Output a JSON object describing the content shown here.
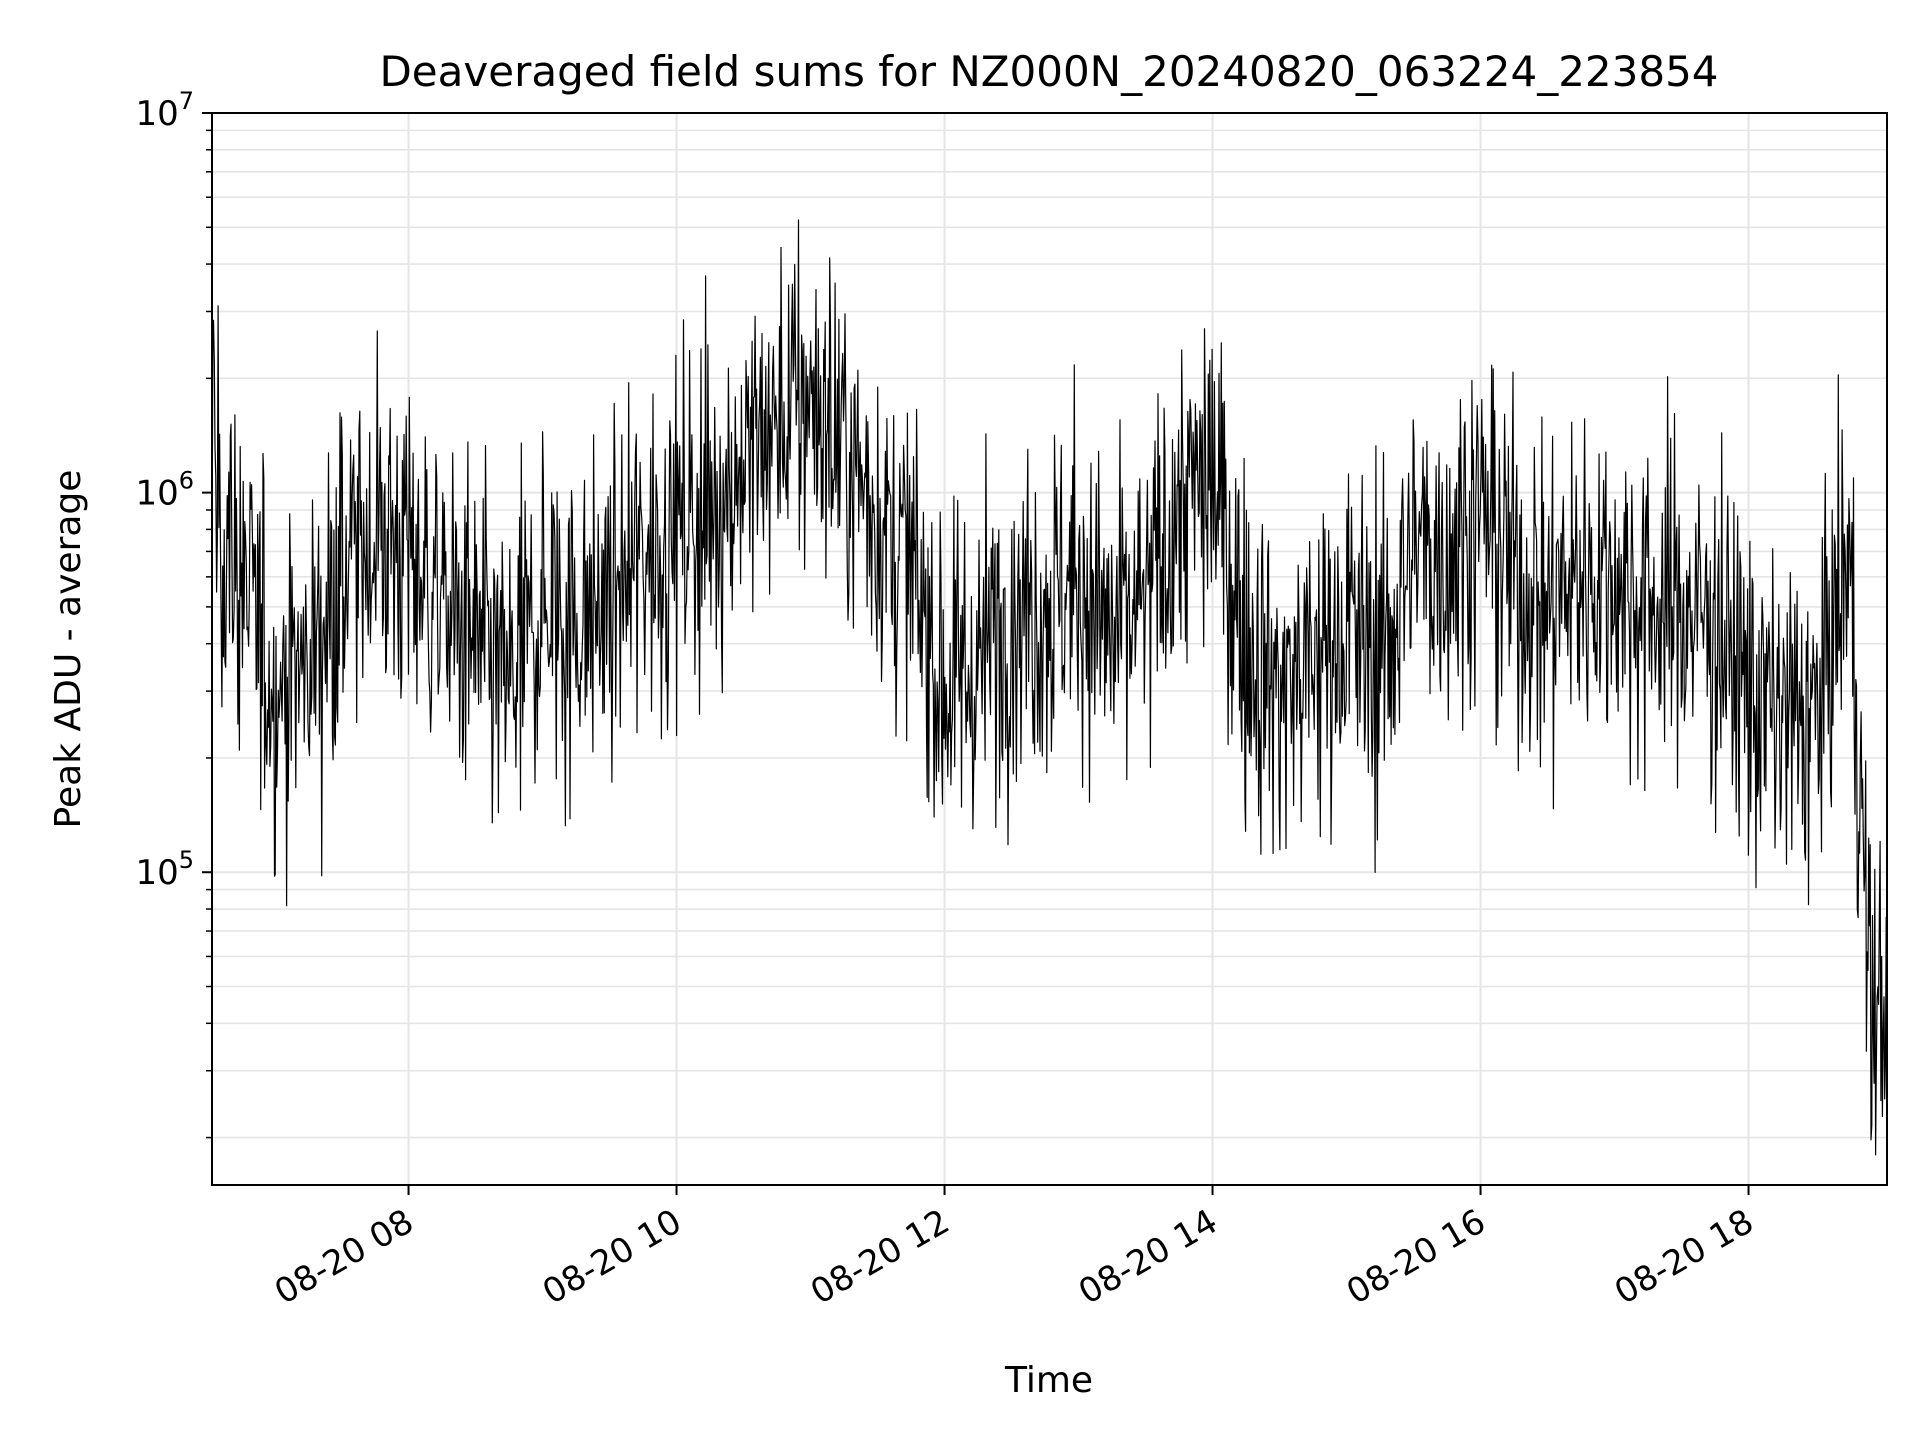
{
  "chart_data": {
    "type": "line",
    "title": "Deaveraged field sums for NZ000N_20240820_063224_223854",
    "xlabel": "Time",
    "ylabel": "Peak ADU - average",
    "x_scale": "time",
    "y_scale": "log",
    "xlim": [
      "2024-08-20 06:32",
      "2024-08-20 19:02"
    ],
    "ylim": [
      15000,
      10000000
    ],
    "grid": true,
    "line_color": "#000000",
    "grid_color": "#e5e5e5",
    "x_ticks": [
      {
        "value": "2024-08-20 08:00",
        "label": "08-20 08"
      },
      {
        "value": "2024-08-20 10:00",
        "label": "08-20 10"
      },
      {
        "value": "2024-08-20 12:00",
        "label": "08-20 12"
      },
      {
        "value": "2024-08-20 14:00",
        "label": "08-20 14"
      },
      {
        "value": "2024-08-20 16:00",
        "label": "08-20 16"
      },
      {
        "value": "2024-08-20 18:00",
        "label": "08-20 18"
      }
    ],
    "y_ticks": [
      {
        "value": 100000,
        "base": "10",
        "exp": "5"
      },
      {
        "value": 1000000,
        "base": "10",
        "exp": "6"
      },
      {
        "value": 10000000,
        "base": "10",
        "exp": "7"
      }
    ],
    "series": [
      {
        "x": [
          "2024-08-20 06:32",
          "2024-08-20 06:45",
          "2024-08-20 07:00",
          "2024-08-20 07:15",
          "2024-08-20 07:30",
          "2024-08-20 07:45",
          "2024-08-20 08:00",
          "2024-08-20 08:15",
          "2024-08-20 08:30",
          "2024-08-20 08:45",
          "2024-08-20 09:00",
          "2024-08-20 09:15",
          "2024-08-20 09:30",
          "2024-08-20 09:45",
          "2024-08-20 10:00",
          "2024-08-20 10:15",
          "2024-08-20 10:30",
          "2024-08-20 10:45",
          "2024-08-20 11:00",
          "2024-08-20 11:15",
          "2024-08-20 11:30",
          "2024-08-20 11:45",
          "2024-08-20 12:00",
          "2024-08-20 12:15",
          "2024-08-20 12:30",
          "2024-08-20 12:45",
          "2024-08-20 13:00",
          "2024-08-20 13:15",
          "2024-08-20 13:30",
          "2024-08-20 13:45",
          "2024-08-20 14:00",
          "2024-08-20 14:15",
          "2024-08-20 14:30",
          "2024-08-20 14:45",
          "2024-08-20 15:00",
          "2024-08-20 15:15",
          "2024-08-20 15:30",
          "2024-08-20 15:45",
          "2024-08-20 16:00",
          "2024-08-20 16:15",
          "2024-08-20 16:30",
          "2024-08-20 16:45",
          "2024-08-20 17:00",
          "2024-08-20 17:15",
          "2024-08-20 17:30",
          "2024-08-20 17:45",
          "2024-08-20 18:00",
          "2024-08-20 18:15",
          "2024-08-20 18:30",
          "2024-08-20 18:45",
          "2024-08-20 18:55",
          "2024-08-20 19:02"
        ],
        "y": [
          900000,
          600000,
          300000,
          350000,
          600000,
          800000,
          700000,
          500000,
          400000,
          300000,
          500000,
          450000,
          500000,
          700000,
          800000,
          900000,
          1200000,
          1500000,
          1800000,
          1300000,
          900000,
          600000,
          300000,
          350000,
          500000,
          500000,
          600000,
          400000,
          500000,
          900000,
          1100000,
          400000,
          300000,
          350000,
          450000,
          350000,
          700000,
          700000,
          900000,
          600000,
          500000,
          600000,
          600000,
          500000,
          500000,
          450000,
          300000,
          250000,
          250000,
          700000,
          40000,
          50000
        ]
      }
    ]
  }
}
